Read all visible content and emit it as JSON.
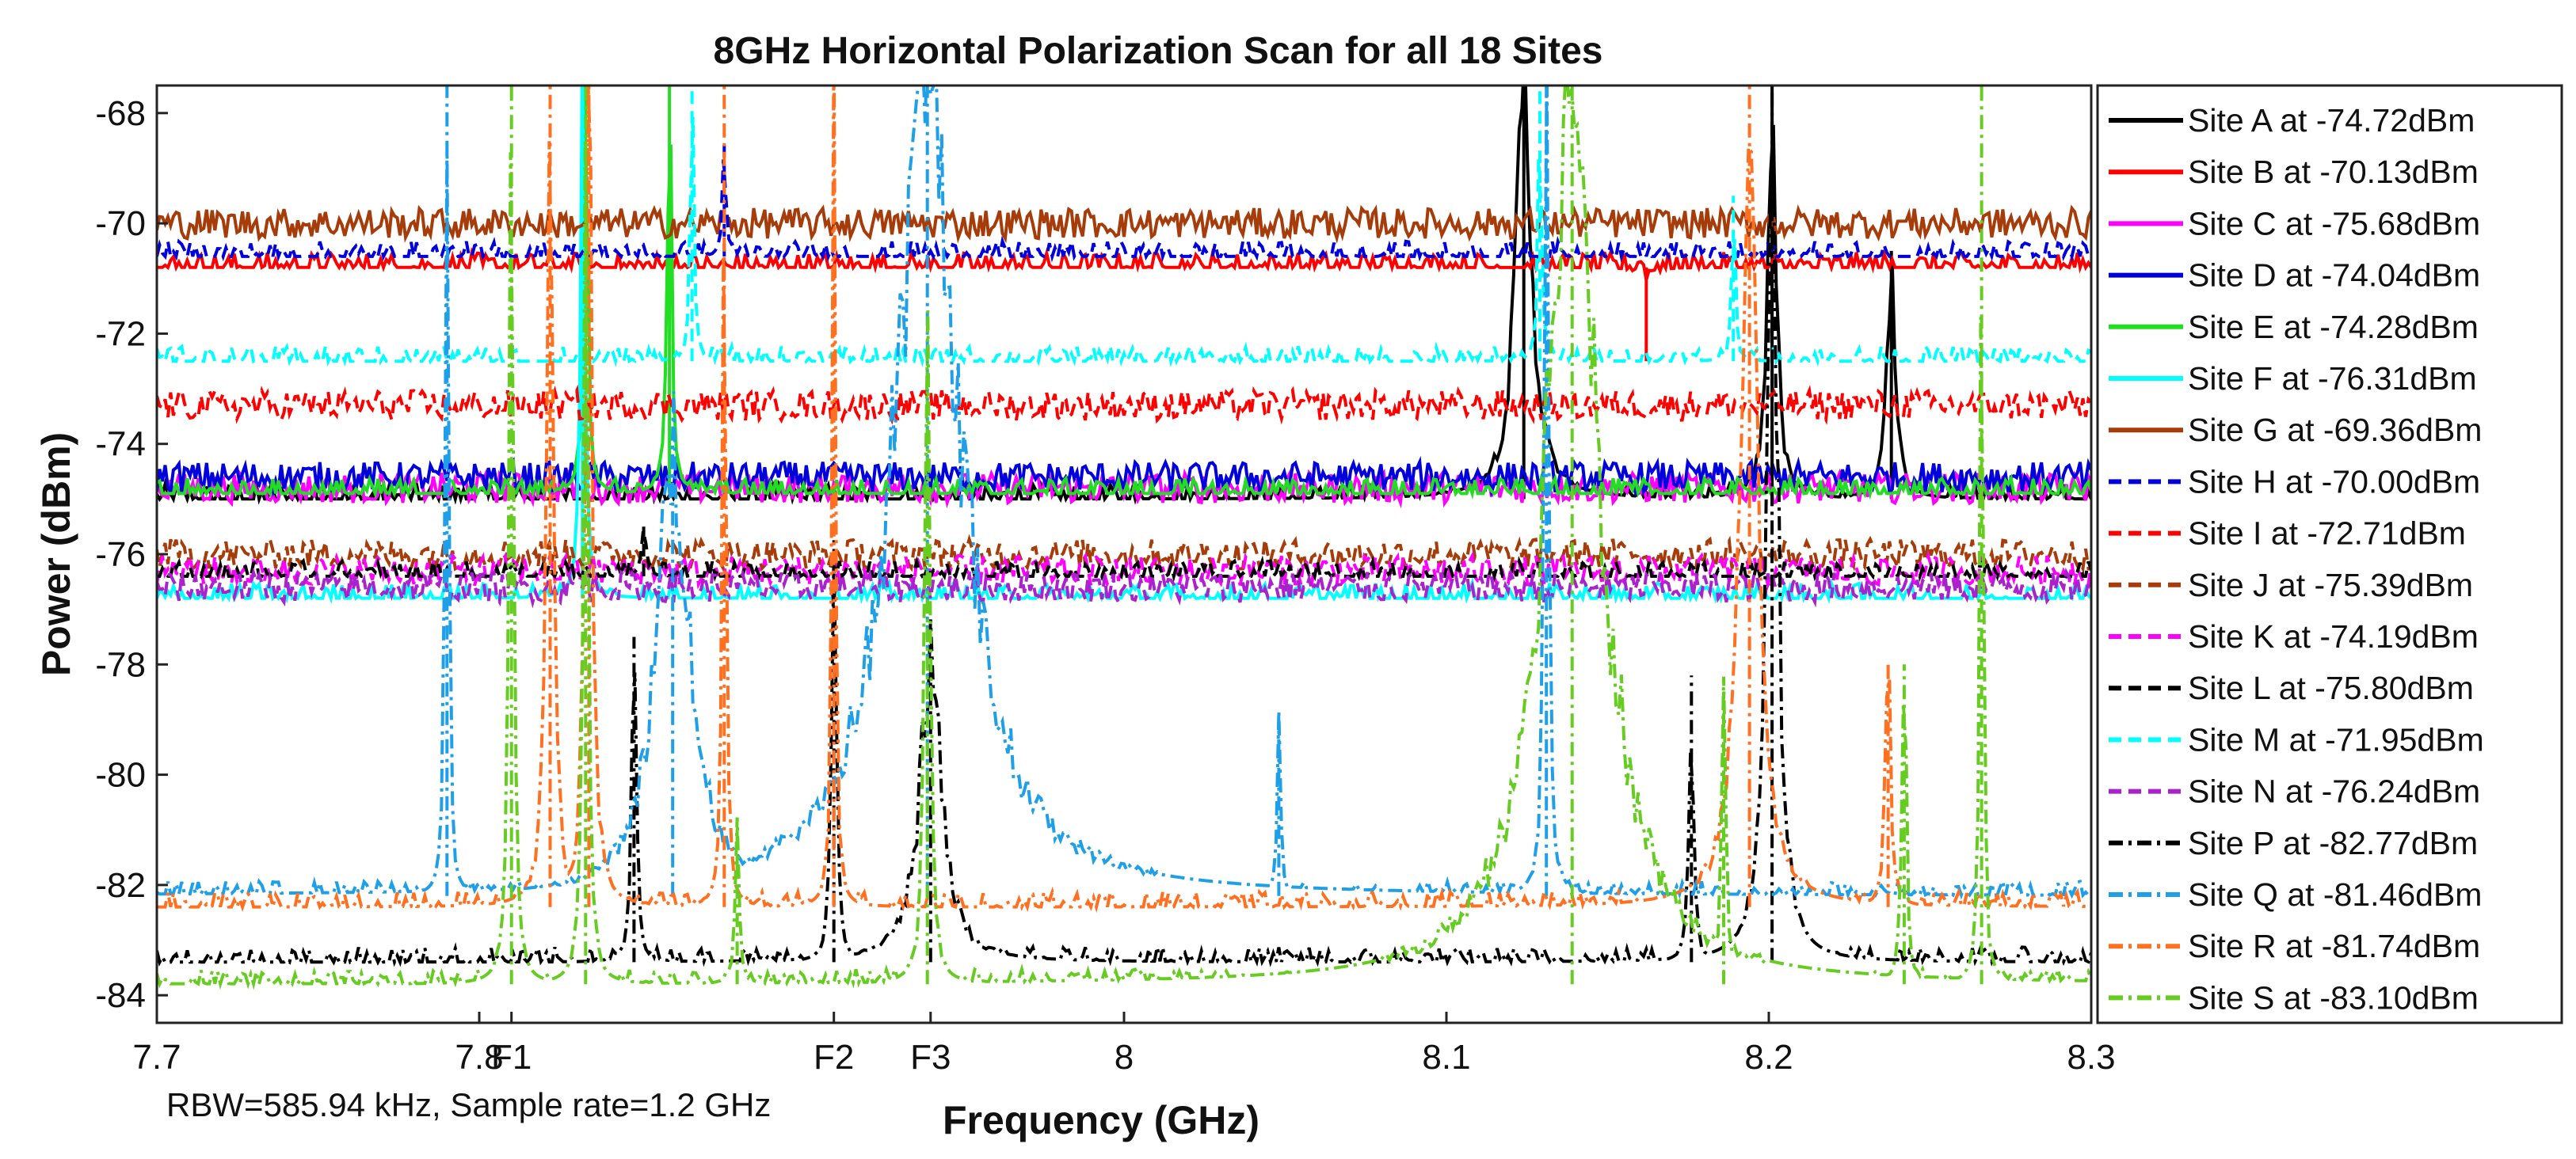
{
  "colors": {
    "siteA": "#000000",
    "siteB": "#ff0000",
    "siteC": "#ff00ff",
    "siteD": "#0000dd",
    "siteE": "#22dd22",
    "siteF": "#00ffff",
    "siteG": "#a63c0a",
    "siteQ": "#1e9fe8",
    "siteR": "#ff7020",
    "siteS": "#66cc22",
    "siteN": "#aa22cc"
  },
  "chart_data": {
    "type": "line",
    "title": "8GHz Horizontal Polarization Scan for all 18 Sites",
    "xlabel": "Frequency (GHz)",
    "ylabel": "Power (dBm)",
    "xlim": [
      7.7,
      8.3
    ],
    "ylim": [
      -84.5,
      -67.5
    ],
    "x_ticks": [
      {
        "value": 7.7,
        "label": "7.7"
      },
      {
        "value": 7.8,
        "label": "7.8"
      },
      {
        "value": 7.81,
        "label": "F1"
      },
      {
        "value": 7.91,
        "label": "F2"
      },
      {
        "value": 7.94,
        "label": "F3"
      },
      {
        "value": 8.0,
        "label": "8"
      },
      {
        "value": 8.1,
        "label": "8.1"
      },
      {
        "value": 8.2,
        "label": "8.2"
      },
      {
        "value": 8.3,
        "label": "8.3"
      }
    ],
    "y_ticks": [
      -68,
      -70,
      -72,
      -74,
      -76,
      -78,
      -80,
      -82,
      -84
    ],
    "grid": false,
    "legend_position": "right",
    "annotation": "RBW=585.94 kHz, Sample rate=1.2 GHz",
    "series": [
      {
        "name": "Site A at -74.72dBm",
        "style": "solid",
        "color": "#000000",
        "noise_floor": -75.0,
        "peaks": [
          {
            "x": 8.124,
            "level": -67.5,
            "width": 0.003
          },
          {
            "x": 8.201,
            "level": -67.5,
            "width": 0.0015
          },
          {
            "x": 8.238,
            "level": -70.5,
            "width": 0.0015
          }
        ]
      },
      {
        "name": "Site B at -70.13dBm",
        "style": "solid",
        "color": "#ff0000",
        "noise_floor": -70.8,
        "peaks": [
          {
            "x": 8.162,
            "level": -72.5,
            "width": 0.0008
          }
        ]
      },
      {
        "name": "Site C at -75.68dBm",
        "style": "solid",
        "color": "#ff00ff",
        "noise_floor": -74.8,
        "peaks": []
      },
      {
        "name": "Site D at -74.04dBm",
        "style": "solid",
        "color": "#0000dd",
        "noise_floor": -74.6,
        "peaks": []
      },
      {
        "name": "Site E at -74.28dBm",
        "style": "solid",
        "color": "#22dd22",
        "noise_floor": -74.9,
        "peaks": [
          {
            "x": 7.833,
            "level": -67.5,
            "width": 0.0008
          },
          {
            "x": 7.859,
            "level": -67.5,
            "width": 0.0008
          }
        ]
      },
      {
        "name": "Site F at -76.31dBm",
        "style": "solid",
        "color": "#00ffff",
        "noise_floor": -76.8,
        "peaks": [
          {
            "x": 7.832,
            "level": -67.5,
            "width": 0.0008
          }
        ]
      },
      {
        "name": "Site G at -69.36dBm",
        "style": "solid",
        "color": "#a63c0a",
        "noise_floor": -70.0,
        "peaks": []
      },
      {
        "name": "Site H at -70.00dBm",
        "style": "dash",
        "color": "#0000dd",
        "noise_floor": -70.6,
        "peaks": [
          {
            "x": 7.876,
            "level": -68.5,
            "width": 0.0006
          }
        ]
      },
      {
        "name": "Site I at -72.71dBm",
        "style": "dash",
        "color": "#ff0000",
        "noise_floor": -73.3,
        "peaks": []
      },
      {
        "name": "Site J at -75.39dBm",
        "style": "dash",
        "color": "#a63c0a",
        "noise_floor": -76.0,
        "peaks": []
      },
      {
        "name": "Site K at -74.19dBm",
        "style": "dash",
        "color": "#ff00ff",
        "noise_floor": -76.3,
        "peaks": []
      },
      {
        "name": "Site L at -75.80dBm",
        "style": "dash",
        "color": "#000000",
        "noise_floor": -76.4,
        "peaks": [
          {
            "x": 7.851,
            "level": -75.5,
            "width": 0.0008
          }
        ]
      },
      {
        "name": "Site M at -71.95dBm",
        "style": "dash",
        "color": "#00ffff",
        "noise_floor": -72.5,
        "peaks": [
          {
            "x": 7.866,
            "level": -67.5,
            "width": 0.0006
          },
          {
            "x": 8.129,
            "level": -67.5,
            "width": 0.0006
          },
          {
            "x": 8.189,
            "level": -69.5,
            "width": 0.0006
          }
        ]
      },
      {
        "name": "Site N at -76.24dBm",
        "style": "dash",
        "color": "#aa22cc",
        "noise_floor": -76.6,
        "peaks": []
      },
      {
        "name": "Site P at -82.77dBm",
        "style": "dashdot",
        "color": "#000000",
        "noise_floor": -83.4,
        "peaks": [
          {
            "x": 7.848,
            "level": -77.5,
            "width": 0.0008
          },
          {
            "x": 7.91,
            "level": -75.5,
            "width": 0.0008
          },
          {
            "x": 7.94,
            "level": -78.0,
            "width": 0.004
          },
          {
            "x": 8.176,
            "level": -78.2,
            "width": 0.0008
          },
          {
            "x": 8.201,
            "level": -67.5,
            "width": 0.002
          }
        ]
      },
      {
        "name": "Site Q at -81.46dBm",
        "style": "dashdot",
        "color": "#1e9fe8",
        "noise_floor": -82.2,
        "peaks": [
          {
            "x": 7.79,
            "level": -67.5,
            "width": 0.0006
          },
          {
            "x": 7.86,
            "level": -74.0,
            "width": 0.006
          },
          {
            "x": 7.939,
            "level": -67.5,
            "width": 0.012
          },
          {
            "x": 8.048,
            "level": -79.0,
            "width": 0.0006
          },
          {
            "x": 8.131,
            "level": -67.5,
            "width": 0.0008
          }
        ]
      },
      {
        "name": "Site R at -81.74dBm",
        "style": "dashdot",
        "color": "#ff7020",
        "noise_floor": -82.4,
        "peaks": [
          {
            "x": 7.822,
            "level": -67.5,
            "width": 0.0012
          },
          {
            "x": 7.834,
            "level": -67.5,
            "width": 0.0012
          },
          {
            "x": 7.876,
            "level": -67.5,
            "width": 0.0006
          },
          {
            "x": 7.91,
            "level": -67.5,
            "width": 0.0006
          },
          {
            "x": 8.194,
            "level": -67.5,
            "width": 0.003
          },
          {
            "x": 8.237,
            "level": -78.0,
            "width": 0.001
          }
        ]
      },
      {
        "name": "Site S at -83.10dBm",
        "style": "dashdot",
        "color": "#66cc22",
        "noise_floor": -83.8,
        "peaks": [
          {
            "x": 7.81,
            "level": -67.5,
            "width": 0.0008
          },
          {
            "x": 7.833,
            "level": -67.5,
            "width": 0.0008
          },
          {
            "x": 7.88,
            "level": -81.0,
            "width": 0.0008
          },
          {
            "x": 7.939,
            "level": -72.5,
            "width": 0.001
          },
          {
            "x": 8.139,
            "level": -67.5,
            "width": 0.01
          },
          {
            "x": 8.186,
            "level": -78.5,
            "width": 0.0008
          },
          {
            "x": 8.242,
            "level": -78.0,
            "width": 0.0008
          },
          {
            "x": 8.266,
            "level": -67.5,
            "width": 0.0006
          }
        ]
      }
    ]
  }
}
